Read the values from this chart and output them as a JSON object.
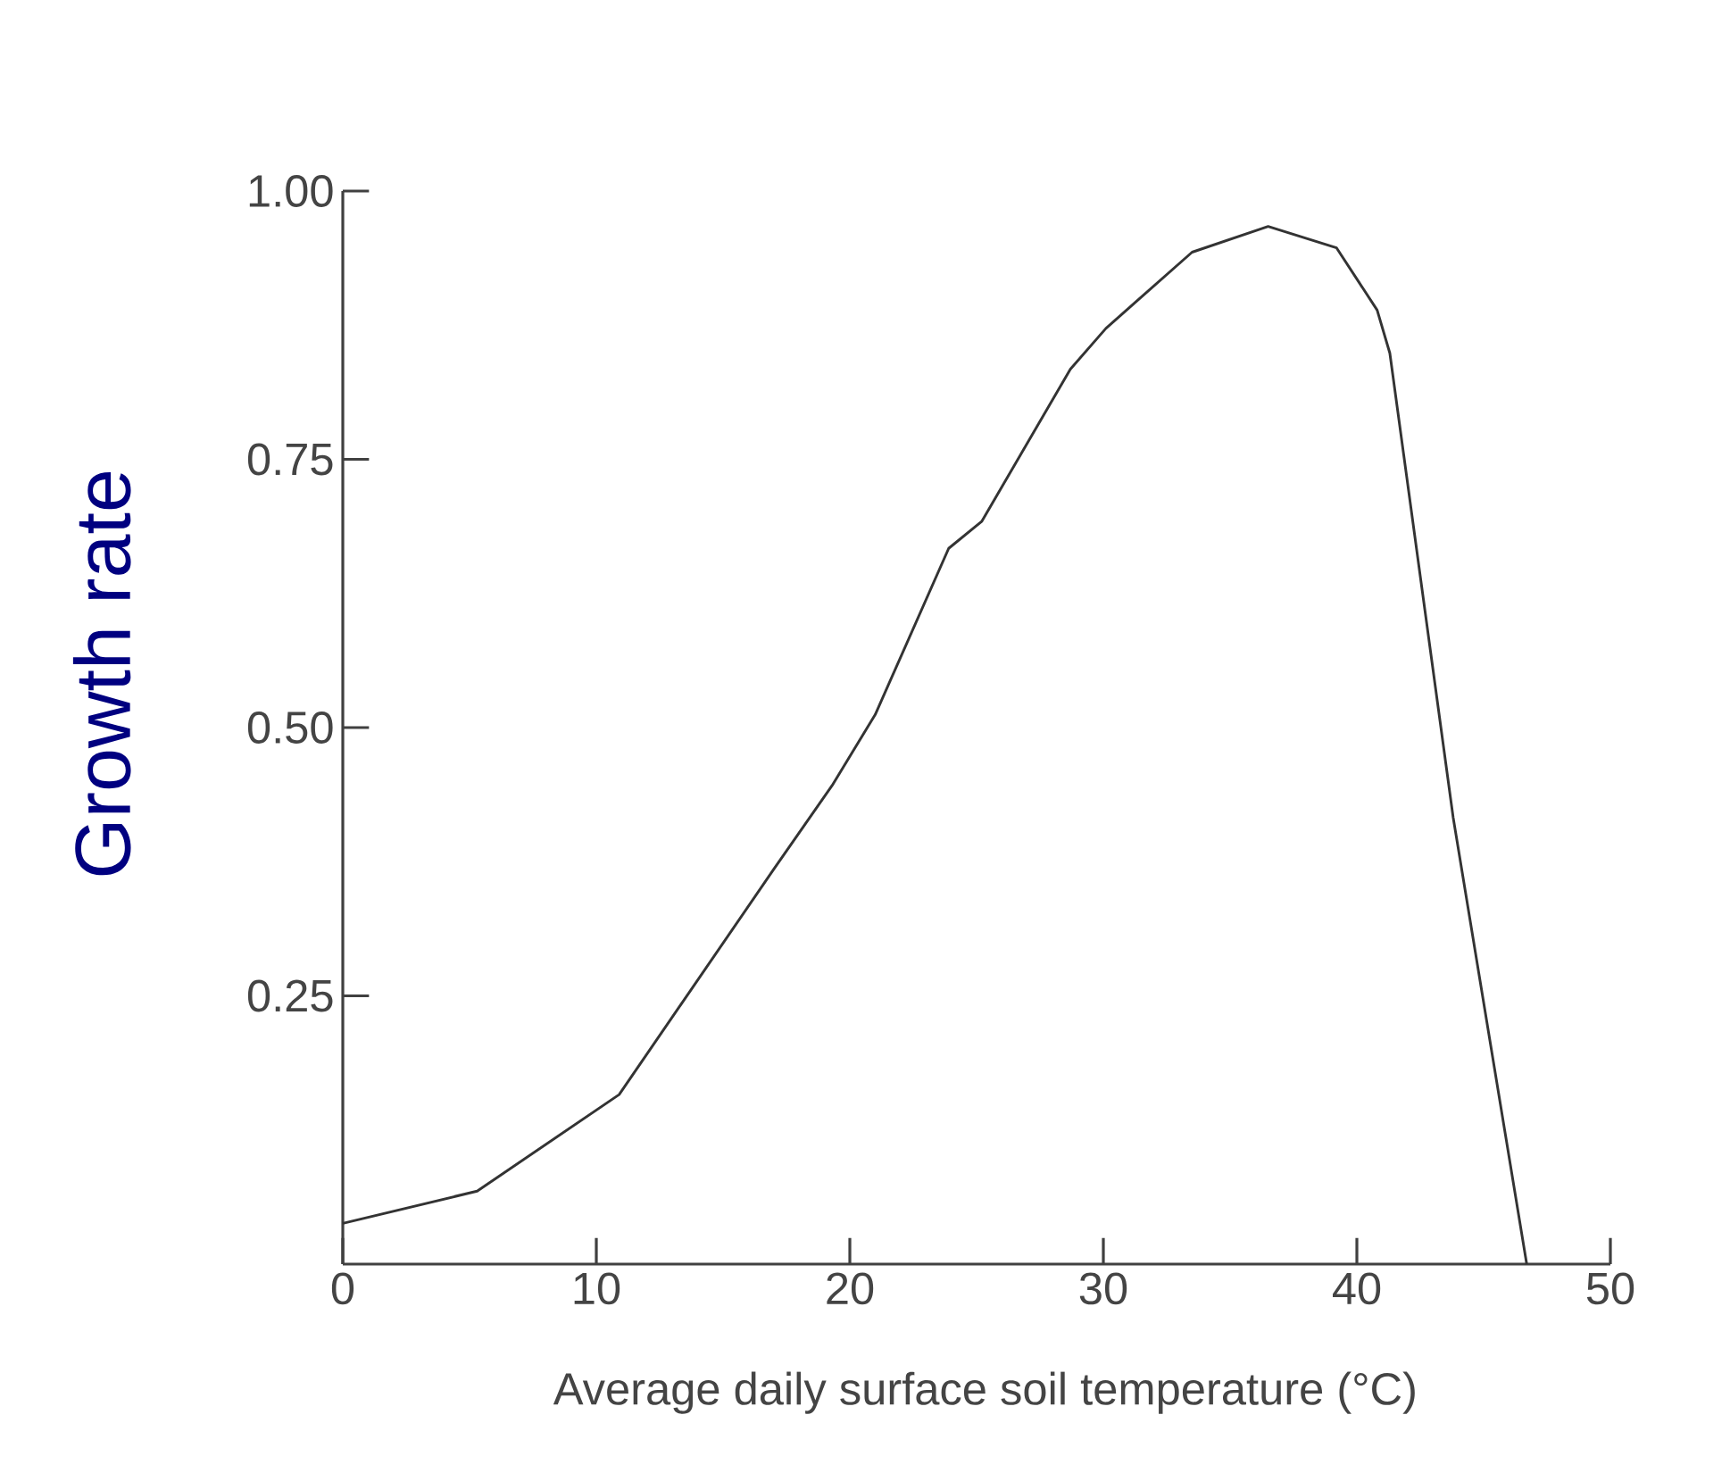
{
  "chart_data": {
    "type": "line",
    "xlabel": "Average daily surface soil temperature (°C)",
    "ylabel": "Growth rate",
    "x": [
      0,
      5.3,
      10.9,
      17.0,
      19.3,
      21.0,
      23.9,
      25.2,
      28.7,
      30.1,
      33.5,
      36.5,
      39.2,
      40.8,
      41.3,
      43.8,
      46.7
    ],
    "values": [
      0.038,
      0.068,
      0.158,
      0.368,
      0.446,
      0.512,
      0.667,
      0.692,
      0.834,
      0.872,
      0.943,
      0.967,
      0.947,
      0.889,
      0.849,
      0.416,
      0
    ],
    "color": "#333333",
    "xlim": [
      0,
      50
    ],
    "ylim": [
      0,
      1
    ],
    "xticks": [
      0,
      10,
      20,
      30,
      40,
      50
    ],
    "yticks": [
      0.25,
      {
        "value": 0.5,
        "label": "0.50"
      },
      {
        "value": 0.75,
        "label": "0.75"
      },
      {
        "value": 1.0,
        "label": "1.00"
      }
    ],
    "grid": false,
    "marker": "none",
    "line_style": "solid"
  }
}
